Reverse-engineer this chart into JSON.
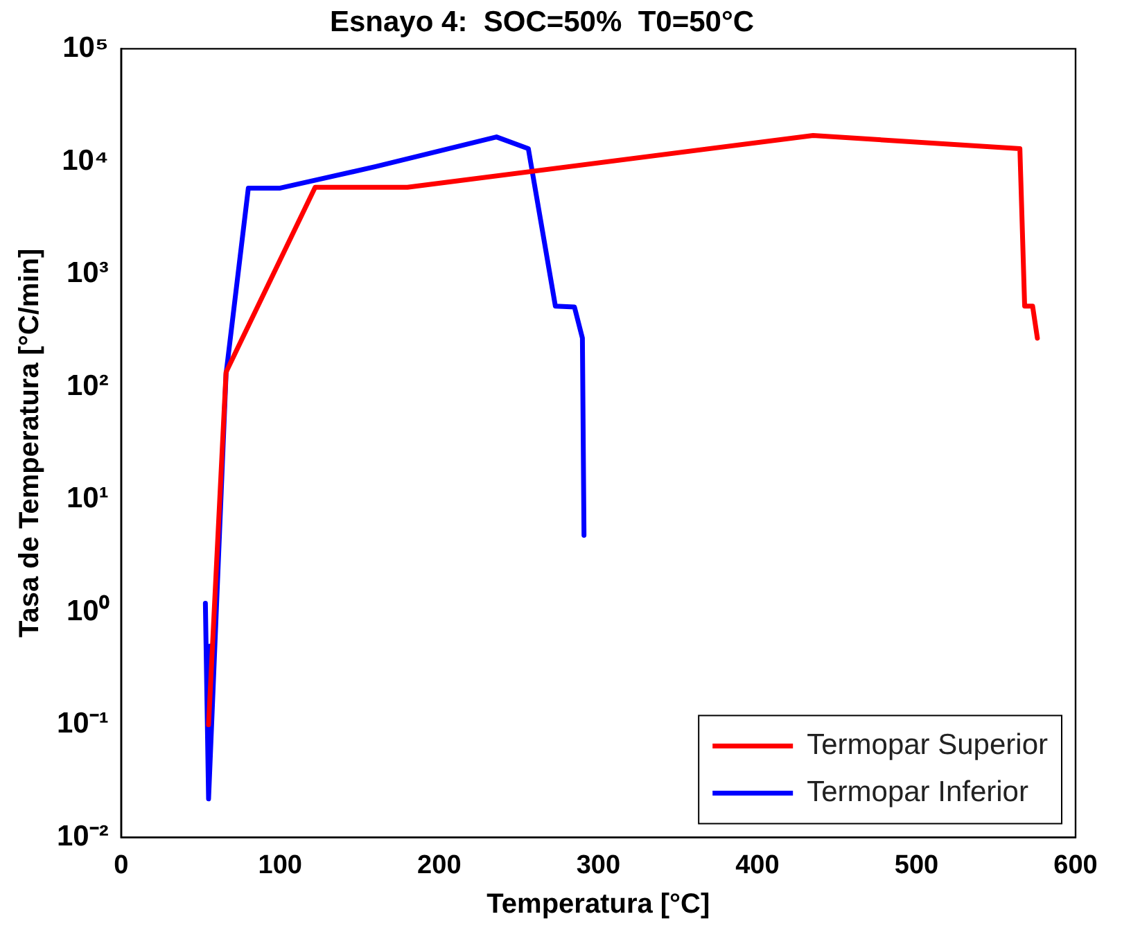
{
  "chart_data": {
    "type": "line",
    "title": "Esnayo 4:  SOC=50%  T0=50°C",
    "xlabel": "Temperatura [°C]",
    "ylabel": "Tasa de Temperatura [°C/min]",
    "xlim": [
      0,
      600
    ],
    "xticks": [
      0,
      100,
      200,
      300,
      400,
      500,
      600
    ],
    "ylim": [
      0.01,
      100000
    ],
    "yticks": [
      {
        "value": 0.01,
        "label": "10⁻²"
      },
      {
        "value": 0.1,
        "label": "10⁻¹"
      },
      {
        "value": 1,
        "label": "10⁰"
      },
      {
        "value": 10,
        "label": "10¹"
      },
      {
        "value": 100,
        "label": "10²"
      },
      {
        "value": 1000,
        "label": "10³"
      },
      {
        "value": 10000,
        "label": "10⁴"
      },
      {
        "value": 100000,
        "label": "10⁵"
      }
    ],
    "log": "y",
    "grid": false,
    "legend": "bottom right",
    "marker": "none",
    "line_style": "solid",
    "series": [
      {
        "name": "Termopar Superior",
        "color": "#ff0000",
        "x": [
          55,
          66,
          122,
          180,
          435,
          565,
          568,
          573,
          576
        ],
        "values": [
          0.1,
          135,
          5900,
          5900,
          17000,
          13000,
          520,
          520,
          270
        ]
      },
      {
        "name": "Termopar Inferior",
        "color": "#0000ff",
        "x": [
          53,
          55,
          56,
          55,
          66,
          80,
          100,
          160,
          236,
          256,
          273,
          285,
          290,
          291
        ],
        "values": [
          1.2,
          0.022,
          0.5,
          0.022,
          130,
          5800,
          5800,
          9000,
          16500,
          13000,
          520,
          510,
          270,
          4.8
        ]
      }
    ]
  }
}
